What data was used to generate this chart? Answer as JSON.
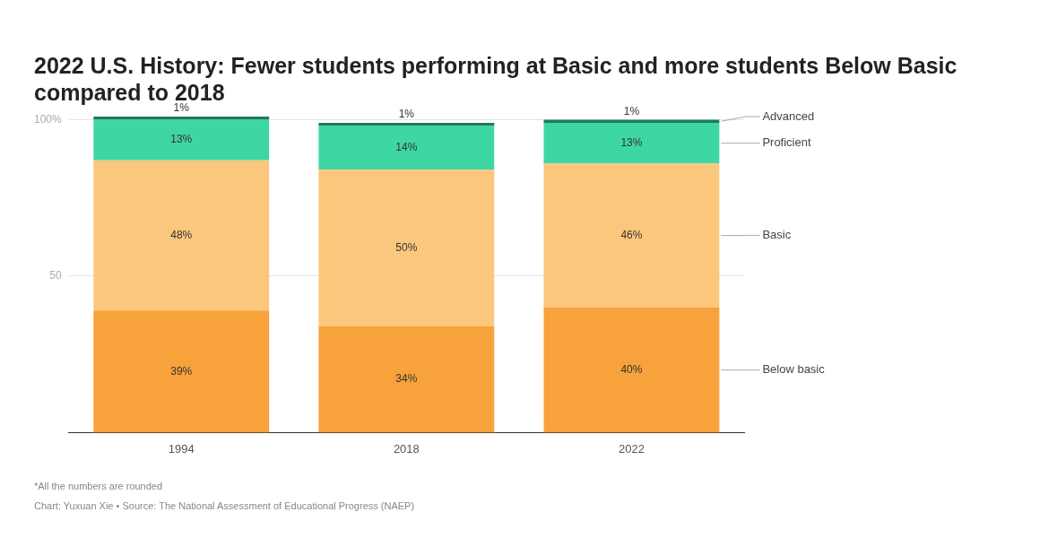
{
  "chart_data": {
    "type": "bar",
    "stacked": true,
    "title": "2022 U.S. History: Fewer students performing at Basic and more students Below Basic compared to 2018",
    "categories": [
      "1994",
      "2018",
      "2022"
    ],
    "series": [
      {
        "name": "Below basic",
        "color": "#f7a23b",
        "values": [
          39,
          34,
          40
        ],
        "value_labels": [
          "39%",
          "34%",
          "40%"
        ]
      },
      {
        "name": "Basic",
        "color": "#fbc77c",
        "values": [
          48,
          50,
          46
        ],
        "value_labels": [
          "48%",
          "50%",
          "46%"
        ]
      },
      {
        "name": "Proficient",
        "color": "#3fd6a6",
        "values": [
          13,
          14,
          13
        ],
        "value_labels": [
          "13%",
          "14%",
          "13%"
        ]
      },
      {
        "name": "Advanced",
        "color": "#1e7b56",
        "values": [
          1,
          1,
          1
        ],
        "value_labels": [
          "1%",
          "1%",
          "1%"
        ]
      }
    ],
    "ylim": [
      0,
      101
    ],
    "yticks": [
      {
        "value": 50,
        "label": "50"
      },
      {
        "value": 100,
        "label": "100%"
      }
    ],
    "grid": "y",
    "legend": false,
    "annotations": [
      "*All the numbers are rounded",
      "Chart: Yuxuan Xie • Source: The National Assessment of Educational Progress (NAEP)"
    ]
  }
}
